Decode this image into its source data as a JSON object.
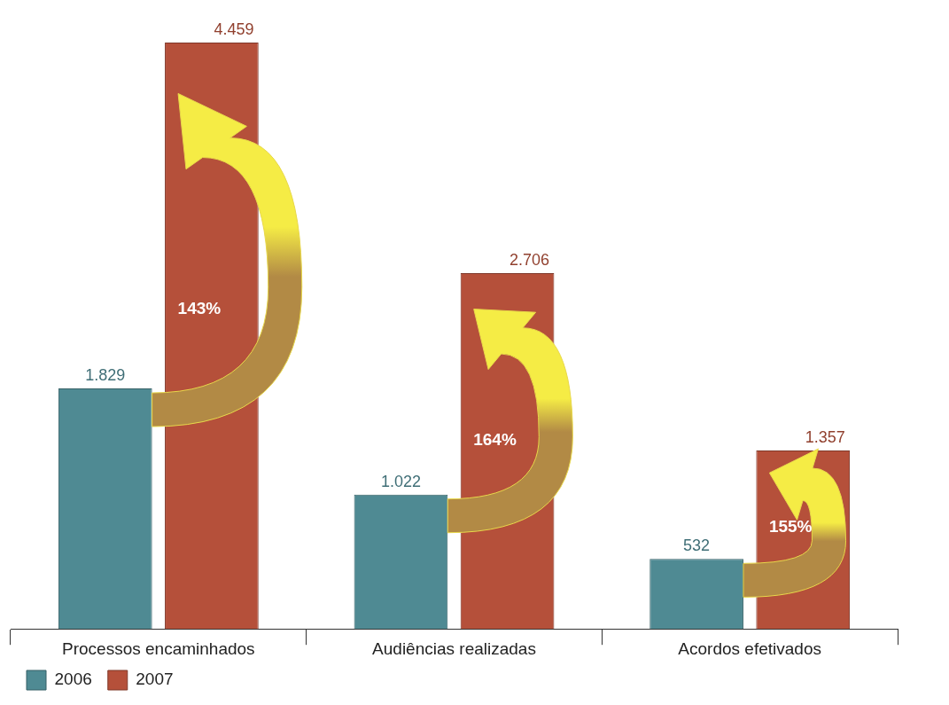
{
  "chart_data": {
    "type": "bar",
    "categories": [
      "Processos encaminhados",
      "Audiências realizadas",
      "Acordos efetivados"
    ],
    "series": [
      {
        "name": "2006",
        "color": "#4f8a93",
        "values": [
          1829,
          1022,
          532
        ],
        "value_labels": [
          "1.829",
          "1.022",
          "532"
        ]
      },
      {
        "name": "2007",
        "color": "#b5503a",
        "values": [
          4459,
          2706,
          1357
        ],
        "value_labels": [
          "4.459",
          "2.706",
          "1.357"
        ]
      }
    ],
    "annotations": [
      "143%",
      "164%",
      "155%"
    ],
    "legend": "bottom left",
    "grid": false
  }
}
